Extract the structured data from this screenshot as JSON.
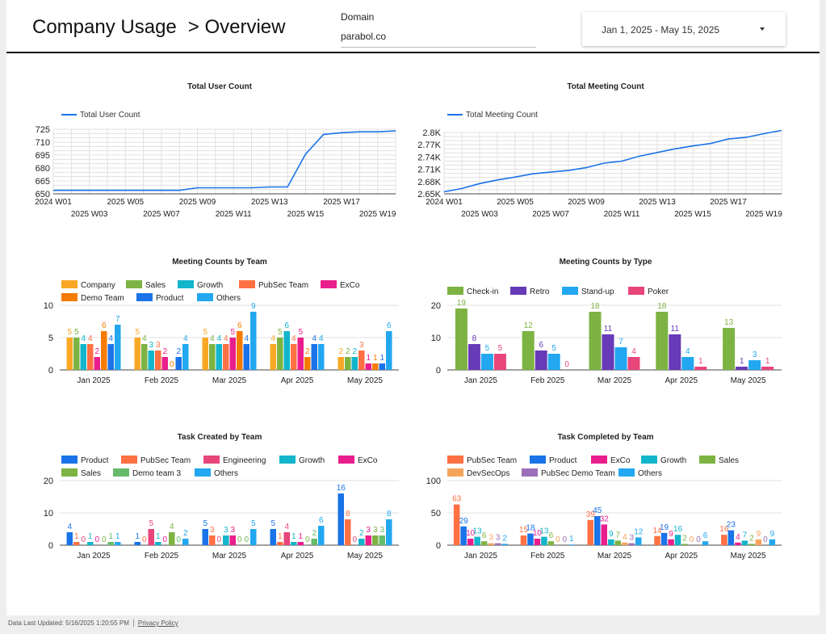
{
  "header": {
    "title": "Company Usage",
    "subtitle": "> Overview",
    "domain_label": "Domain",
    "domain_value": "parabol.co",
    "date_range": "Jan 1, 2025 - May 15, 2025"
  },
  "footer": {
    "updated": "Data Last Updated: 5/16/2025 1:20:55 PM",
    "privacy": "Privacy Policy"
  },
  "charts": {
    "user_count": {
      "title": "Total User Count",
      "legend": "Total User Count",
      "color": "#1a73e8",
      "y_ticks": [
        "725",
        "710",
        "695",
        "680",
        "665",
        "650"
      ],
      "x_ticks_top": [
        "2024 W01",
        "2025 W05",
        "2025 W09",
        "2025 W13",
        "2025 W17"
      ],
      "x_ticks_bottom": [
        "2025 W03",
        "2025 W07",
        "2025 W11",
        "2025 W15",
        "2025 W19"
      ]
    },
    "meeting_count": {
      "title": "Total Meeting Count",
      "legend": "Total Meeting Count",
      "color": "#1a73e8",
      "y_ticks": [
        "2.8K",
        "2.77K",
        "2.74K",
        "2.71K",
        "2.68K",
        "2.65K"
      ],
      "x_ticks_top": [
        "2024 W01",
        "2025 W05",
        "2025 W09",
        "2025 W13",
        "2025 W17"
      ],
      "x_ticks_bottom": [
        "2025 W03",
        "2025 W07",
        "2025 W11",
        "2025 W15",
        "2025 W19"
      ]
    },
    "meetings_by_team": {
      "title": "Meeting Counts by Team",
      "y_ticks": [
        "10",
        "5",
        "0"
      ],
      "categories": [
        "Jan 2025",
        "Feb 2025",
        "Mar 2025",
        "Apr 2025",
        "May 2025"
      ]
    },
    "meetings_by_type": {
      "title": "Meeting Counts by Type",
      "y_ticks": [
        "20",
        "10",
        "0"
      ],
      "categories": [
        "Jan 2025",
        "Feb 2025",
        "Mar 2025",
        "Apr 2025",
        "May 2025"
      ]
    },
    "tasks_created": {
      "title": "Task Created by Team",
      "y_ticks": [
        "20",
        "10",
        "0"
      ],
      "categories": [
        "Jan 2025",
        "Feb 2025",
        "Mar 2025",
        "Apr 2025",
        "May 2025"
      ]
    },
    "tasks_completed": {
      "title": "Task Completed by Team",
      "y_ticks": [
        "100",
        "50",
        "0"
      ],
      "categories": [
        "Jan 2025",
        "Feb 2025",
        "Mar 2025",
        "Apr 2025",
        "May 2025"
      ]
    }
  },
  "chart_data": [
    {
      "type": "line",
      "title": "Total User Count",
      "ylim": [
        650,
        725
      ],
      "x": [
        "2024 W01",
        "2025 W02",
        "2025 W03",
        "2025 W04",
        "2025 W05",
        "2025 W06",
        "2025 W07",
        "2025 W08",
        "2025 W09",
        "2025 W10",
        "2025 W11",
        "2025 W12",
        "2025 W13",
        "2025 W14",
        "2025 W15",
        "2025 W16",
        "2025 W17",
        "2025 W18",
        "2025 W19",
        "2025 W20"
      ],
      "series": [
        {
          "name": "Total User Count",
          "values": [
            654,
            654,
            654,
            654,
            654,
            654,
            654,
            654,
            657,
            657,
            657,
            657,
            658,
            658,
            696,
            719,
            721,
            722,
            722,
            723
          ]
        }
      ]
    },
    {
      "type": "line",
      "title": "Total Meeting Count",
      "ylim": [
        2650,
        2800
      ],
      "x": [
        "2024 W01",
        "2025 W02",
        "2025 W03",
        "2025 W04",
        "2025 W05",
        "2025 W06",
        "2025 W07",
        "2025 W08",
        "2025 W09",
        "2025 W10",
        "2025 W11",
        "2025 W12",
        "2025 W13",
        "2025 W14",
        "2025 W15",
        "2025 W16",
        "2025 W17",
        "2025 W18",
        "2025 W19",
        "2025 W20"
      ],
      "series": [
        {
          "name": "Total Meeting Count",
          "values": [
            2655,
            2663,
            2675,
            2684,
            2691,
            2699,
            2703,
            2707,
            2714,
            2725,
            2730,
            2742,
            2751,
            2760,
            2767,
            2773,
            2784,
            2788,
            2797,
            2805
          ]
        }
      ]
    },
    {
      "type": "bar",
      "title": "Meeting Counts by Team",
      "ylim": [
        0,
        10
      ],
      "categories": [
        "Jan 2025",
        "Feb 2025",
        "Mar 2025",
        "Apr 2025",
        "May 2025"
      ],
      "series": [
        {
          "name": "Company",
          "color": "#f9a825",
          "values": [
            5,
            5,
            5,
            4,
            2
          ]
        },
        {
          "name": "Sales",
          "color": "#7cb342",
          "values": [
            5,
            4,
            4,
            5,
            2
          ]
        },
        {
          "name": "Growth",
          "color": "#12b5cb",
          "values": [
            4,
            3,
            4,
            6,
            2
          ]
        },
        {
          "name": "PubSec Team",
          "color": "#ff7043",
          "values": [
            4,
            3,
            4,
            4,
            3
          ]
        },
        {
          "name": "ExCo",
          "color": "#e91e8c",
          "values": [
            2,
            2,
            5,
            5,
            1
          ]
        },
        {
          "name": "Demo Team",
          "color": "#f57c00",
          "values": [
            6,
            0,
            6,
            2,
            1
          ]
        },
        {
          "name": "Product",
          "color": "#1a73e8",
          "values": [
            4,
            2,
            4,
            4,
            1
          ]
        },
        {
          "name": "Others",
          "color": "#22a7f0",
          "values": [
            7,
            4,
            9,
            4,
            6
          ]
        }
      ]
    },
    {
      "type": "bar",
      "title": "Meeting Counts by Type",
      "ylim": [
        0,
        20
      ],
      "categories": [
        "Jan 2025",
        "Feb 2025",
        "Mar 2025",
        "Apr 2025",
        "May 2025"
      ],
      "series": [
        {
          "name": "Check-in",
          "color": "#7cb342",
          "values": [
            19,
            12,
            18,
            18,
            13
          ]
        },
        {
          "name": "Retro",
          "color": "#673ab7",
          "values": [
            8,
            6,
            11,
            11,
            1
          ]
        },
        {
          "name": "Stand-up",
          "color": "#22a7f0",
          "values": [
            5,
            5,
            7,
            4,
            3
          ]
        },
        {
          "name": "Poker",
          "color": "#e8457a",
          "values": [
            5,
            0,
            4,
            1,
            1
          ]
        }
      ]
    },
    {
      "type": "bar",
      "title": "Task Created by Team",
      "ylim": [
        0,
        20
      ],
      "categories": [
        "Jan 2025",
        "Feb 2025",
        "Mar 2025",
        "Apr 2025",
        "May 2025"
      ],
      "series": [
        {
          "name": "Product",
          "color": "#1a73e8",
          "values": [
            4,
            1,
            5,
            5,
            16
          ]
        },
        {
          "name": "PubSec Team",
          "color": "#ff7043",
          "values": [
            1,
            0,
            3,
            1,
            8
          ]
        },
        {
          "name": "Engineering",
          "color": "#e8457a",
          "values": [
            0,
            5,
            0,
            4,
            0
          ]
        },
        {
          "name": "Growth",
          "color": "#12b5cb",
          "values": [
            1,
            1,
            3,
            1,
            2
          ]
        },
        {
          "name": "ExCo",
          "color": "#e91e8c",
          "values": [
            0,
            0,
            3,
            1,
            3
          ]
        },
        {
          "name": "Sales",
          "color": "#7cb342",
          "values": [
            0,
            4,
            0,
            0,
            3
          ]
        },
        {
          "name": "Demo team 3",
          "color": "#66bb6a",
          "values": [
            1,
            0,
            0,
            2,
            3
          ]
        },
        {
          "name": "Others",
          "color": "#22a7f0",
          "values": [
            1,
            2,
            5,
            6,
            8
          ]
        }
      ]
    },
    {
      "type": "bar",
      "title": "Task Completed by Team",
      "ylim": [
        0,
        100
      ],
      "categories": [
        "Jan 2025",
        "Feb 2025",
        "Mar 2025",
        "Apr 2025",
        "May 2025"
      ],
      "series": [
        {
          "name": "PubSec Team",
          "color": "#ff7043",
          "values": [
            63,
            15,
            39,
            14,
            16
          ]
        },
        {
          "name": "Product",
          "color": "#1a73e8",
          "values": [
            29,
            18,
            45,
            19,
            23
          ]
        },
        {
          "name": "ExCo",
          "color": "#e91e8c",
          "values": [
            10,
            10,
            32,
            9,
            4
          ]
        },
        {
          "name": "Growth",
          "color": "#12b5cb",
          "values": [
            13,
            13,
            9,
            16,
            7
          ]
        },
        {
          "name": "Sales",
          "color": "#7cb342",
          "values": [
            6,
            6,
            7,
            2,
            2
          ]
        },
        {
          "name": "DevSecOps",
          "color": "#f6a35a",
          "values": [
            3,
            0,
            4,
            0,
            9
          ]
        },
        {
          "name": "PubSec Demo Team",
          "color": "#9c6fb8",
          "values": [
            3,
            0,
            3,
            0,
            0
          ]
        },
        {
          "name": "Others",
          "color": "#22a7f0",
          "values": [
            2,
            1,
            12,
            6,
            9
          ]
        }
      ]
    }
  ]
}
